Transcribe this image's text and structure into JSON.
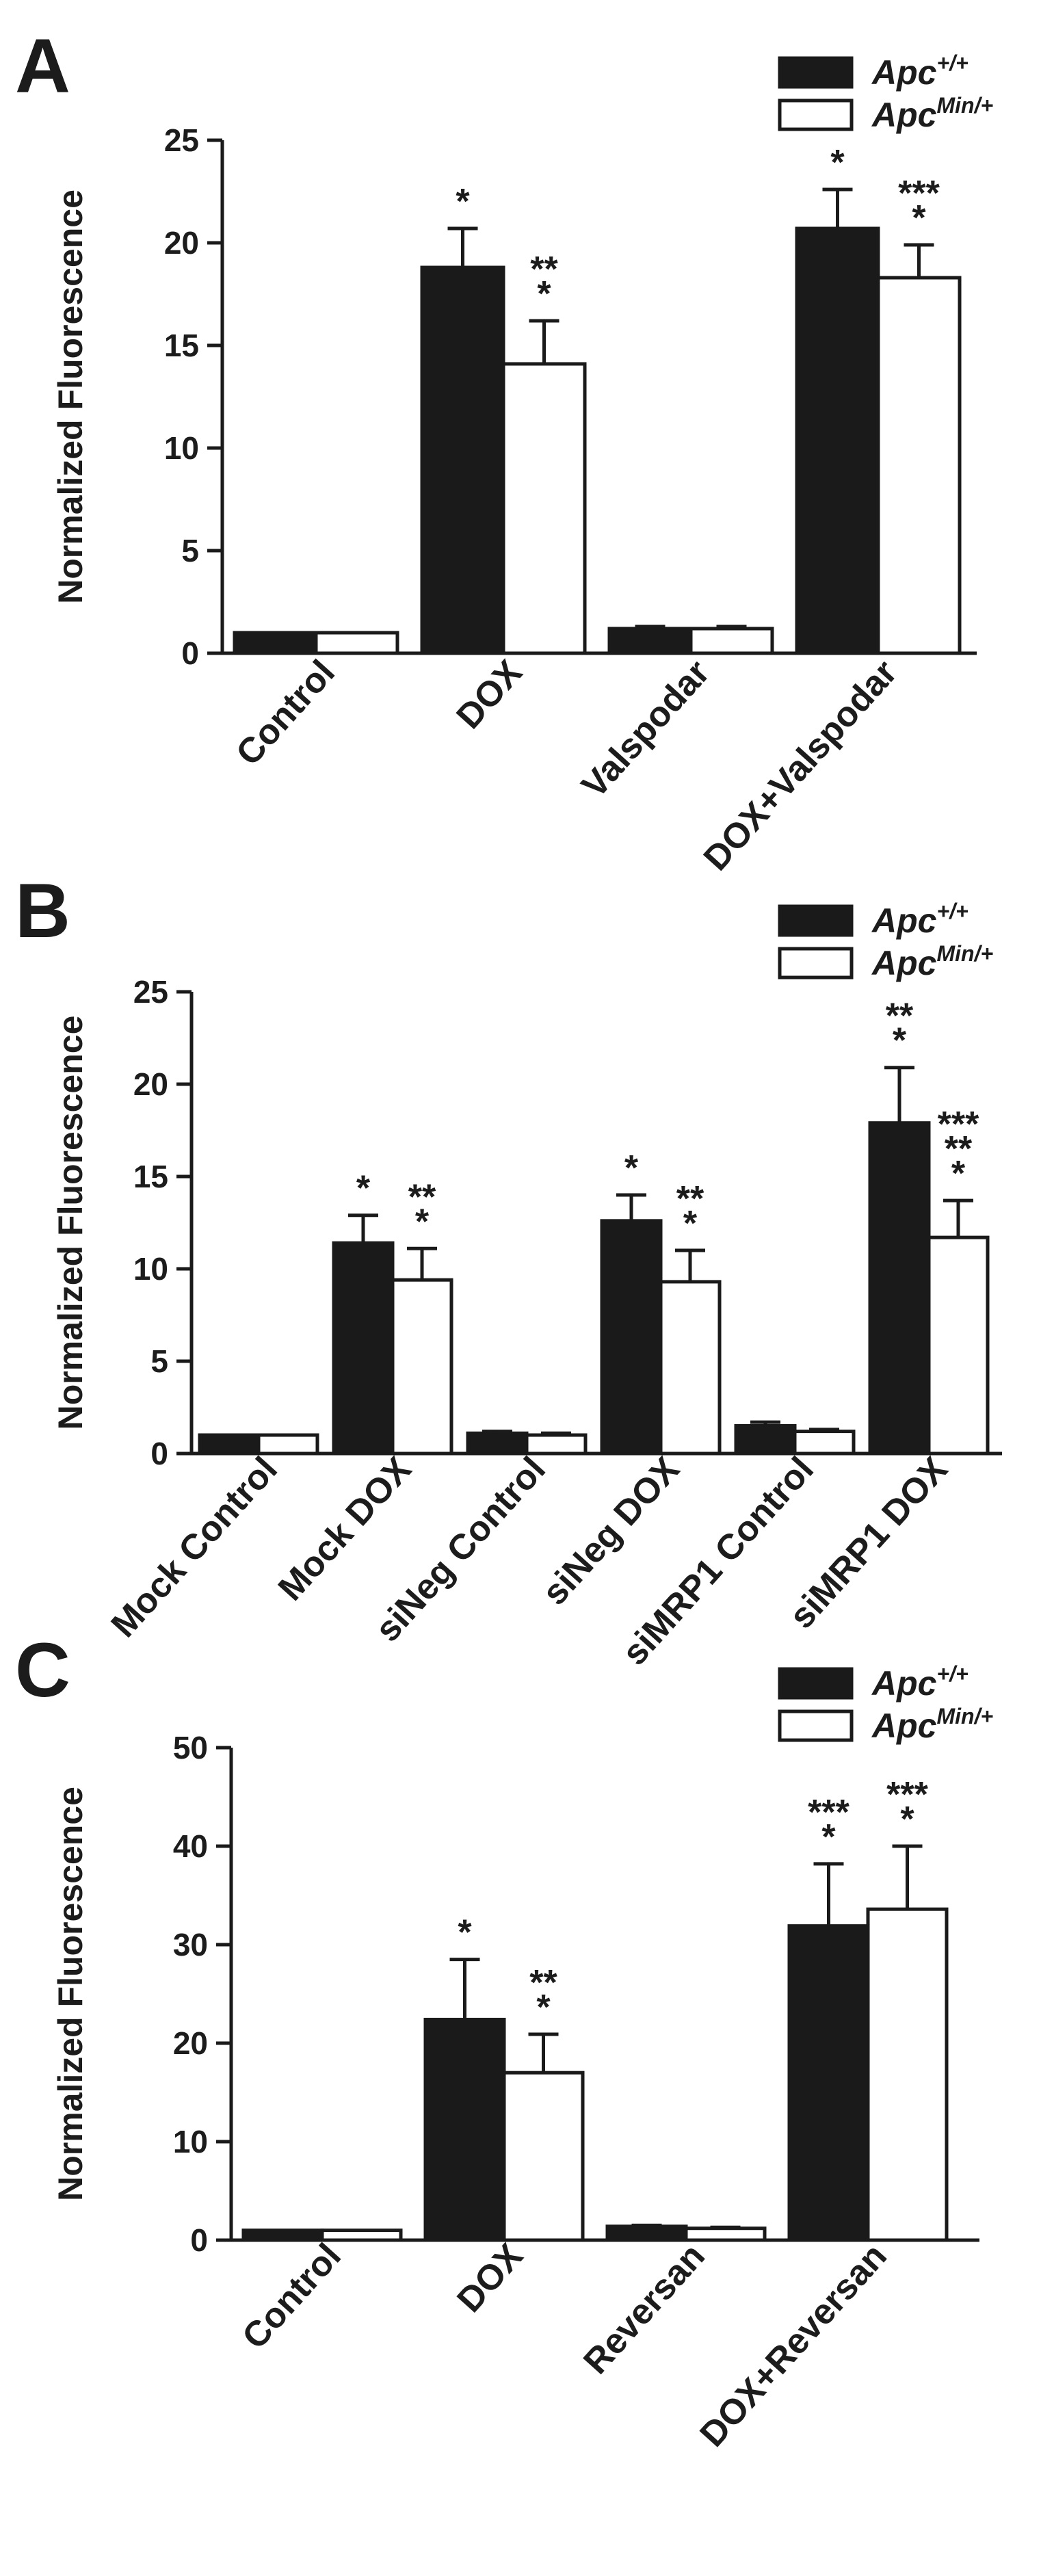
{
  "colors": {
    "bar_fill_a": "#1a1a1a",
    "bar_fill_b": "#ffffff",
    "stroke": "#1a1a1a"
  },
  "chart_data": [
    {
      "type": "bar",
      "panel": "A",
      "ylabel": "Normalized Fluorescence",
      "xlabel": "",
      "ylim": [
        0,
        25
      ],
      "yticks": [
        0,
        5,
        10,
        15,
        20,
        25
      ],
      "categories": [
        "Control",
        "DOX",
        "Valspodar",
        "DOX+Valspodar"
      ],
      "legend_position": "top-right",
      "series": [
        {
          "name": "Apc+/+",
          "legend_base": "Apc",
          "legend_sup": "+/+",
          "fill": "#1a1a1a",
          "values": [
            1.0,
            18.8,
            1.2,
            20.7
          ],
          "errors": [
            0.0,
            1.9,
            0.1,
            1.9
          ],
          "annotations": [
            [],
            [
              "*"
            ],
            [],
            [
              "*"
            ]
          ]
        },
        {
          "name": "ApcMin/+",
          "legend_base": "Apc",
          "legend_sup": "Min/+",
          "fill": "#ffffff",
          "values": [
            1.0,
            14.1,
            1.2,
            18.3
          ],
          "errors": [
            0.0,
            2.1,
            0.1,
            1.6
          ],
          "annotations": [
            [],
            [
              "**",
              "*"
            ],
            [],
            [
              "***",
              "*"
            ]
          ]
        }
      ]
    },
    {
      "type": "bar",
      "panel": "B",
      "ylabel": "Normalized Fluorescence",
      "xlabel": "",
      "ylim": [
        0,
        25
      ],
      "yticks": [
        0,
        5,
        10,
        15,
        20,
        25
      ],
      "categories": [
        "Mock Control",
        "Mock DOX",
        "siNeg Control",
        "siNeg DOX",
        "siMRP1 Control",
        "siMRP1 DOX"
      ],
      "legend_position": "top-right",
      "series": [
        {
          "name": "Apc+/+",
          "legend_base": "Apc",
          "legend_sup": "+/+",
          "fill": "#1a1a1a",
          "values": [
            1.0,
            11.4,
            1.1,
            12.6,
            1.5,
            17.9
          ],
          "errors": [
            0.0,
            1.5,
            0.1,
            1.4,
            0.2,
            3.0
          ],
          "annotations": [
            [],
            [
              "*"
            ],
            [],
            [
              "*"
            ],
            [],
            [
              "**",
              "*"
            ]
          ]
        },
        {
          "name": "ApcMin/+",
          "legend_base": "Apc",
          "legend_sup": "Min/+",
          "fill": "#ffffff",
          "values": [
            1.0,
            9.4,
            1.0,
            9.3,
            1.2,
            11.7
          ],
          "errors": [
            0.0,
            1.7,
            0.1,
            1.7,
            0.1,
            2.0
          ],
          "annotations": [
            [],
            [
              "**",
              "*"
            ],
            [],
            [
              "**",
              "*"
            ],
            [],
            [
              "***",
              "**",
              "*"
            ]
          ]
        }
      ]
    },
    {
      "type": "bar",
      "panel": "C",
      "ylabel": "Normalized Fluorescence",
      "xlabel": "",
      "ylim": [
        0,
        50
      ],
      "yticks": [
        0,
        10,
        20,
        30,
        40,
        50
      ],
      "categories": [
        "Control",
        "DOX",
        "Reversan",
        "DOX+Reversan"
      ],
      "legend_position": "top-right",
      "series": [
        {
          "name": "Apc+/+",
          "legend_base": "Apc",
          "legend_sup": "+/+",
          "fill": "#1a1a1a",
          "values": [
            1.0,
            22.4,
            1.4,
            31.9
          ],
          "errors": [
            0.0,
            6.1,
            0.1,
            6.3
          ],
          "annotations": [
            [],
            [
              "*"
            ],
            [],
            [
              "***",
              "*"
            ]
          ]
        },
        {
          "name": "ApcMin/+",
          "legend_base": "Apc",
          "legend_sup": "Min/+",
          "fill": "#ffffff",
          "values": [
            1.0,
            17.0,
            1.2,
            33.6
          ],
          "errors": [
            0.0,
            3.9,
            0.1,
            6.4
          ],
          "annotations": [
            [],
            [
              "**",
              "*"
            ],
            [],
            [
              "***",
              "*"
            ]
          ]
        }
      ]
    }
  ]
}
